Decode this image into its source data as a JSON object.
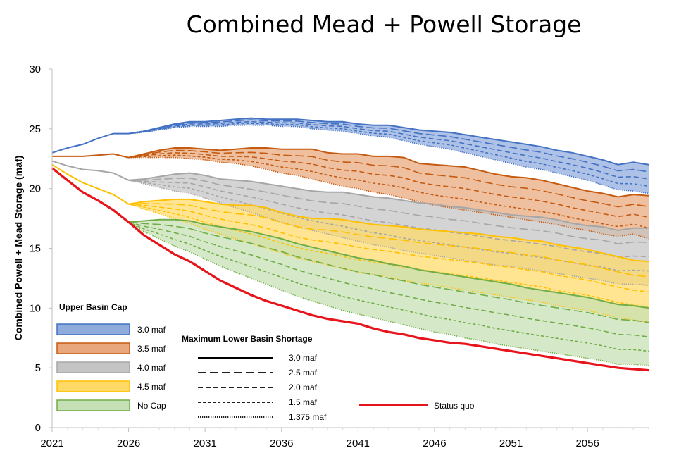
{
  "chart_data": {
    "type": "area",
    "title": "Combined Mead + Powell Storage",
    "xlabel": "",
    "ylabel": "Combined Powell + Mead Storage (maf)",
    "xlim": [
      2021,
      2060
    ],
    "ylim": [
      0,
      30
    ],
    "x_ticks": [
      "2021",
      "2026",
      "2031",
      "2036",
      "2041",
      "2046",
      "2051",
      "2056"
    ],
    "y_ticks": [
      "0",
      "5",
      "10",
      "15",
      "20",
      "25",
      "30"
    ],
    "grid": false,
    "x": [
      2021,
      2022,
      2023,
      2024,
      2025,
      2026,
      2027,
      2028,
      2029,
      2030,
      2031,
      2032,
      2033,
      2034,
      2035,
      2036,
      2037,
      2038,
      2039,
      2040,
      2041,
      2042,
      2043,
      2044,
      2045,
      2046,
      2047,
      2048,
      2049,
      2050,
      2051,
      2052,
      2053,
      2054,
      2055,
      2056,
      2057,
      2058,
      2059,
      2060
    ],
    "series": [
      {
        "name": "Status quo",
        "color": "#e8141b",
        "style": "solid",
        "values": [
          21.7,
          20.7,
          19.7,
          19.0,
          18.2,
          17.2,
          16.1,
          15.3,
          14.5,
          13.9,
          13.1,
          12.3,
          11.7,
          11.1,
          10.6,
          10.2,
          9.8,
          9.4,
          9.1,
          8.9,
          8.7,
          8.3,
          8.0,
          7.8,
          7.5,
          7.3,
          7.1,
          7.0,
          6.8,
          6.6,
          6.4,
          6.2,
          6.0,
          5.8,
          5.6,
          5.4,
          5.2,
          5.0,
          4.9,
          4.8
        ]
      }
    ],
    "historical": {
      "upper_trunk": {
        "x": [
          2021,
          2022,
          2023,
          2024,
          2025,
          2026
        ],
        "values": [
          23.0,
          23.4,
          23.7,
          24.2,
          24.6,
          24.6
        ]
      },
      "cap_3.5": {
        "x": [
          2021,
          2022,
          2023,
          2024,
          2025,
          2026
        ],
        "values": [
          22.7,
          22.7,
          22.7,
          22.8,
          22.9,
          22.6
        ]
      },
      "cap_4.0": {
        "x": [
          2021,
          2022,
          2023,
          2024,
          2025,
          2026
        ],
        "values": [
          22.3,
          21.9,
          21.6,
          21.5,
          21.3,
          20.7
        ]
      },
      "cap_4.5": {
        "x": [
          2021,
          2022,
          2023,
          2024,
          2025,
          2026
        ],
        "values": [
          22.0,
          21.2,
          20.5,
          20.0,
          19.5,
          18.7
        ]
      },
      "no_cap": {
        "x": [
          2021,
          2022,
          2023,
          2024,
          2025,
          2026
        ],
        "values": [
          21.7,
          20.7,
          19.7,
          19.0,
          18.2,
          17.2
        ]
      }
    },
    "bands": [
      {
        "name": "3.0 maf",
        "fill": "#8eabdc",
        "stroke": "#4472c4",
        "x": [
          2026,
          2027,
          2028,
          2029,
          2030,
          2031,
          2032,
          2033,
          2034,
          2035,
          2036,
          2037,
          2038,
          2039,
          2040,
          2041,
          2042,
          2043,
          2044,
          2045,
          2046,
          2047,
          2048,
          2049,
          2050,
          2051,
          2052,
          2053,
          2054,
          2055,
          2056,
          2057,
          2058,
          2059,
          2060
        ],
        "upper": [
          24.6,
          24.8,
          25.1,
          25.4,
          25.6,
          25.6,
          25.7,
          25.8,
          25.9,
          25.8,
          25.8,
          25.8,
          25.7,
          25.6,
          25.6,
          25.4,
          25.3,
          25.3,
          25.1,
          24.9,
          24.8,
          24.7,
          24.5,
          24.3,
          24.1,
          23.9,
          23.7,
          23.5,
          23.2,
          23.0,
          22.7,
          22.4,
          22.0,
          22.2,
          22.0
        ],
        "lower": [
          24.6,
          24.7,
          24.9,
          25.1,
          25.2,
          25.2,
          25.2,
          25.3,
          25.3,
          25.3,
          25.2,
          25.2,
          25.0,
          24.9,
          24.8,
          24.6,
          24.4,
          24.3,
          24.0,
          23.7,
          23.5,
          23.3,
          23.0,
          22.7,
          22.4,
          22.1,
          21.8,
          21.6,
          21.3,
          21.0,
          20.7,
          20.3,
          19.9,
          19.8,
          19.6
        ]
      },
      {
        "name": "3.5 maf",
        "fill": "#e8a77c",
        "stroke": "#c55a11",
        "x": [
          2026,
          2027,
          2028,
          2029,
          2030,
          2031,
          2032,
          2033,
          2034,
          2035,
          2036,
          2037,
          2038,
          2039,
          2040,
          2041,
          2042,
          2043,
          2044,
          2045,
          2046,
          2047,
          2048,
          2049,
          2050,
          2051,
          2052,
          2053,
          2054,
          2055,
          2056,
          2057,
          2058,
          2059,
          2060
        ],
        "upper": [
          22.6,
          22.9,
          23.2,
          23.4,
          23.4,
          23.3,
          23.2,
          23.3,
          23.4,
          23.4,
          23.3,
          23.3,
          23.3,
          23.0,
          22.9,
          22.9,
          22.7,
          22.7,
          22.6,
          22.1,
          22.0,
          21.9,
          21.8,
          21.5,
          21.2,
          21.0,
          20.9,
          20.7,
          20.4,
          20.1,
          19.8,
          19.6,
          19.3,
          19.5,
          19.4
        ],
        "lower": [
          22.6,
          22.6,
          22.6,
          22.6,
          22.5,
          22.4,
          22.2,
          22.1,
          21.9,
          21.6,
          21.3,
          21.1,
          20.8,
          20.5,
          20.2,
          20.0,
          19.7,
          19.5,
          19.2,
          18.9,
          18.6,
          18.4,
          18.2,
          18.0,
          17.8,
          17.6,
          17.4,
          17.2,
          17.0,
          16.7,
          16.5,
          16.2,
          16.0,
          16.2,
          15.8
        ]
      },
      {
        "name": "4.0 maf",
        "fill": "#c4c4c4",
        "stroke": "#a6a6a6",
        "x": [
          2026,
          2027,
          2028,
          2029,
          2030,
          2031,
          2032,
          2033,
          2034,
          2035,
          2036,
          2037,
          2038,
          2039,
          2040,
          2041,
          2042,
          2043,
          2044,
          2045,
          2046,
          2047,
          2048,
          2049,
          2050,
          2051,
          2052,
          2053,
          2054,
          2055,
          2056,
          2057,
          2058,
          2059,
          2060
        ],
        "upper": [
          20.7,
          20.8,
          21.0,
          21.2,
          21.3,
          21.1,
          20.8,
          20.7,
          20.6,
          20.4,
          20.2,
          20.0,
          19.8,
          19.7,
          19.7,
          19.5,
          19.3,
          19.2,
          19.0,
          18.8,
          18.7,
          18.5,
          18.4,
          18.2,
          18.0,
          17.8,
          17.7,
          17.6,
          17.4,
          17.1,
          16.9,
          16.8,
          16.5,
          16.7,
          16.7
        ],
        "lower": [
          20.7,
          20.4,
          20.1,
          19.8,
          19.6,
          19.2,
          18.8,
          18.4,
          18.0,
          17.6,
          17.2,
          16.8,
          16.5,
          16.2,
          15.9,
          15.6,
          15.3,
          15.1,
          14.8,
          14.6,
          14.4,
          14.2,
          14.0,
          13.8,
          13.6,
          13.5,
          13.3,
          13.1,
          12.9,
          12.7,
          12.5,
          12.3,
          12.0,
          12.0,
          11.9
        ]
      },
      {
        "name": "4.5 maf",
        "fill": "#ffd966",
        "stroke": "#ffc000",
        "x": [
          2026,
          2027,
          2028,
          2029,
          2030,
          2031,
          2032,
          2033,
          2034,
          2035,
          2036,
          2037,
          2038,
          2039,
          2040,
          2041,
          2042,
          2043,
          2044,
          2045,
          2046,
          2047,
          2048,
          2049,
          2050,
          2051,
          2052,
          2053,
          2054,
          2055,
          2056,
          2057,
          2058,
          2059,
          2060
        ],
        "upper": [
          18.7,
          18.9,
          19.0,
          19.1,
          19.1,
          18.9,
          18.7,
          18.6,
          18.6,
          18.4,
          18.0,
          17.7,
          17.5,
          17.5,
          17.4,
          17.2,
          17.0,
          16.9,
          16.8,
          16.6,
          16.5,
          16.4,
          16.3,
          16.2,
          16.0,
          15.9,
          15.7,
          15.6,
          15.3,
          15.1,
          14.9,
          14.6,
          14.3,
          14.0,
          13.9
        ],
        "lower": [
          18.7,
          18.3,
          17.9,
          17.5,
          17.1,
          16.6,
          16.2,
          15.8,
          15.4,
          15.0,
          14.6,
          14.2,
          13.9,
          13.6,
          13.3,
          13.0,
          12.8,
          12.6,
          12.3,
          12.1,
          11.9,
          11.7,
          11.5,
          11.3,
          11.1,
          10.9,
          10.7,
          10.5,
          10.2,
          10.0,
          9.8,
          9.5,
          9.2,
          9.0,
          8.8
        ]
      },
      {
        "name": "No Cap",
        "fill": "#c5e0b4",
        "stroke": "#70ad47",
        "x": [
          2026,
          2027,
          2028,
          2029,
          2030,
          2031,
          2032,
          2033,
          2034,
          2035,
          2036,
          2037,
          2038,
          2039,
          2040,
          2041,
          2042,
          2043,
          2044,
          2045,
          2046,
          2047,
          2048,
          2049,
          2050,
          2051,
          2052,
          2053,
          2054,
          2055,
          2056,
          2057,
          2058,
          2059,
          2060
        ],
        "upper": [
          17.2,
          17.3,
          17.4,
          17.4,
          17.3,
          17.0,
          16.8,
          16.6,
          16.4,
          16.1,
          15.8,
          15.4,
          15.1,
          14.8,
          14.5,
          14.2,
          14.0,
          13.7,
          13.5,
          13.2,
          13.0,
          12.8,
          12.6,
          12.4,
          12.2,
          12.0,
          11.7,
          11.5,
          11.3,
          11.1,
          10.9,
          10.6,
          10.3,
          10.2,
          10.0
        ],
        "lower": [
          17.2,
          16.4,
          15.8,
          15.2,
          14.7,
          14.1,
          13.5,
          13.0,
          12.5,
          12.0,
          11.5,
          11.0,
          10.6,
          10.2,
          9.8,
          9.5,
          9.2,
          8.9,
          8.6,
          8.3,
          8.0,
          7.8,
          7.5,
          7.3,
          7.0,
          6.8,
          6.6,
          6.4,
          6.2,
          6.0,
          5.8,
          5.6,
          5.3,
          5.3,
          5.2
        ]
      }
    ],
    "legend_cap": {
      "title": "Upper Basin Cap",
      "items": [
        {
          "label": "3.0 maf",
          "fill": "#8eabdc",
          "stroke": "#4472c4"
        },
        {
          "label": "3.5 maf",
          "fill": "#e8a77c",
          "stroke": "#c55a11"
        },
        {
          "label": "4.0 maf",
          "fill": "#c4c4c4",
          "stroke": "#a6a6a6"
        },
        {
          "label": "4.5 maf",
          "fill": "#ffd966",
          "stroke": "#ffc000"
        },
        {
          "label": "No Cap",
          "fill": "#c5e0b4",
          "stroke": "#70ad47"
        }
      ]
    },
    "legend_shortage": {
      "title": "Maximum Lower Basin Shortage",
      "items": [
        {
          "label": "3.0 maf",
          "style": "solid"
        },
        {
          "label": "2.5 maf",
          "style": "longdash"
        },
        {
          "label": "2.0 maf",
          "style": "dash"
        },
        {
          "label": "1.5 maf",
          "style": "shortdash"
        },
        {
          "label": "1.375 maf",
          "style": "dotted"
        }
      ]
    },
    "legend_statusquo": {
      "label": "Status quo",
      "color": "#e8141b"
    }
  }
}
